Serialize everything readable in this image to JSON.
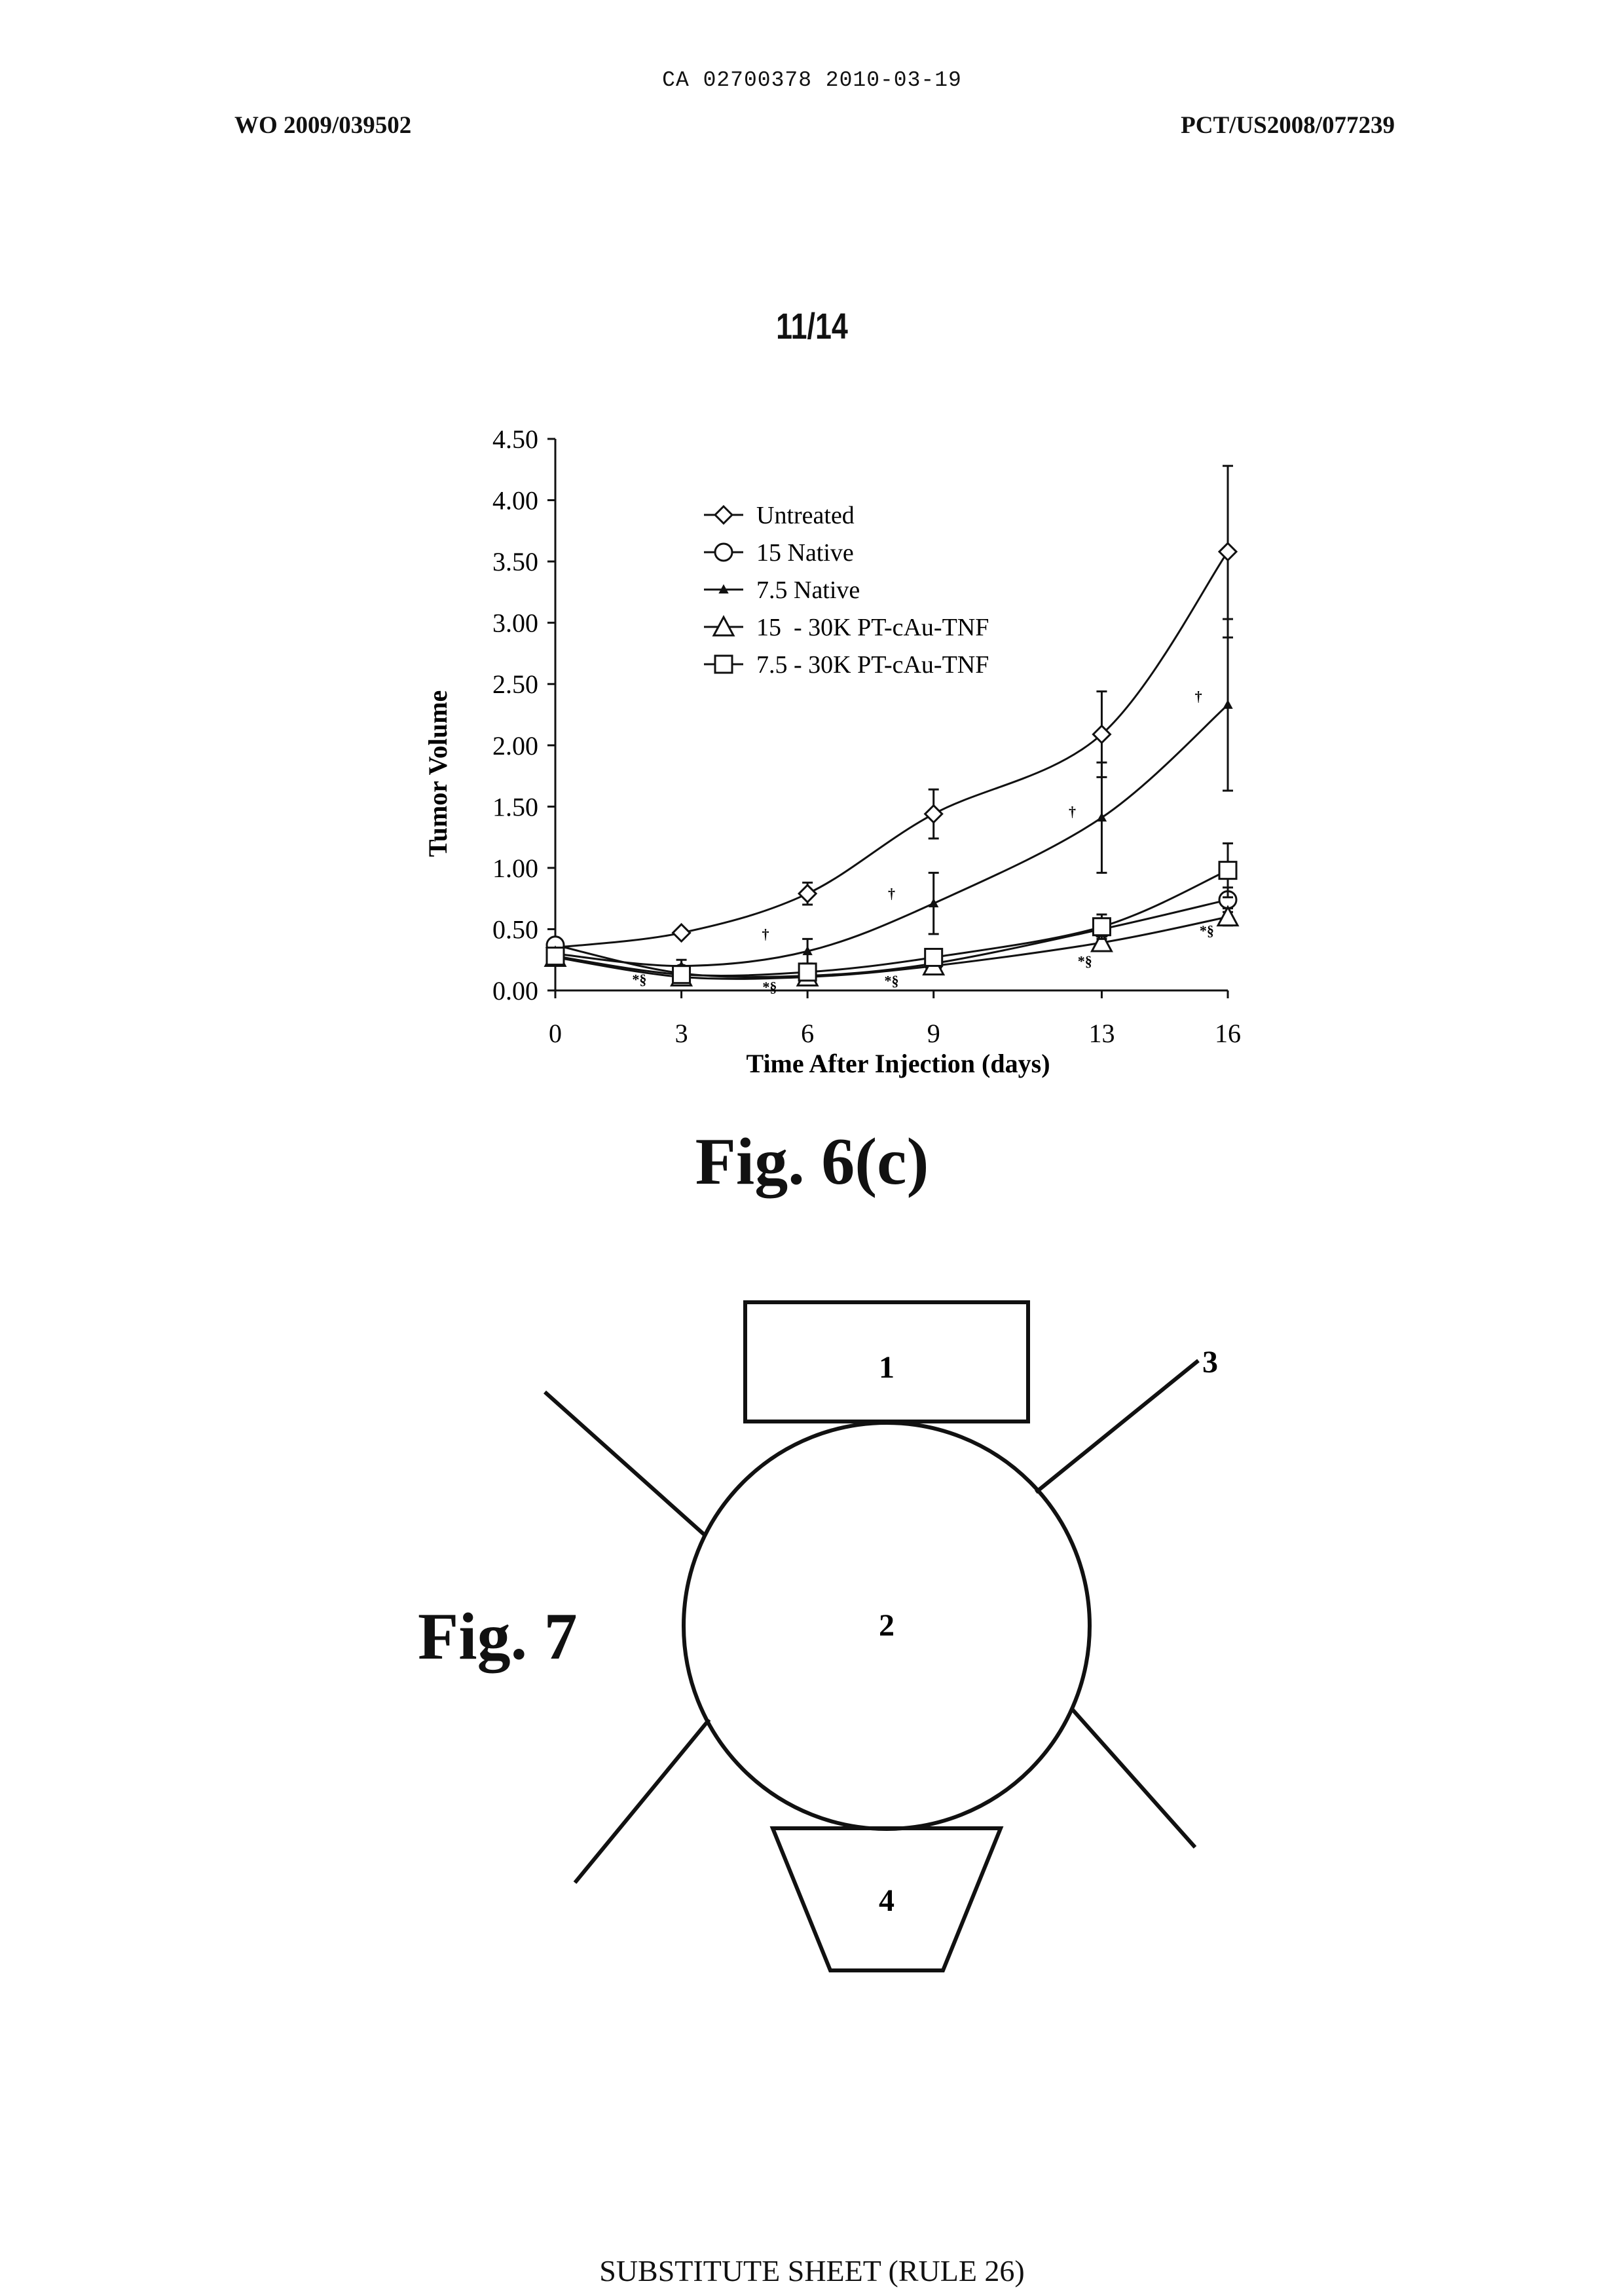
{
  "header": {
    "ca_number": "CA 02700378 2010-03-19",
    "wo_number": "WO 2009/039502",
    "pct_number": "PCT/US2008/077239",
    "sheet": "11/14"
  },
  "figure6c": {
    "caption": "Fig. 6(c)",
    "chart_data": {
      "type": "line",
      "title": "",
      "xlabel": "Time After Injection (days)",
      "ylabel": "Tumor Volume",
      "x": [
        0,
        3,
        6,
        9,
        13,
        16
      ],
      "x_ticks": [
        "0",
        "3",
        "6",
        "9",
        "13",
        "16"
      ],
      "y_ticks": [
        "0.00",
        "0.50",
        "1.00",
        "1.50",
        "2.00",
        "2.50",
        "3.00",
        "3.50",
        "4.00",
        "4.50"
      ],
      "ylim": [
        0,
        4.5
      ],
      "grid": false,
      "legend_position": "top-left inside plot",
      "series": [
        {
          "name": "Untreated",
          "marker": "diamond",
          "values": [
            0.35,
            0.47,
            0.79,
            1.44,
            2.09,
            3.58
          ],
          "errors": [
            0.03,
            0.03,
            0.09,
            0.2,
            0.35,
            0.7
          ]
        },
        {
          "name": "15 Native",
          "marker": "circle",
          "values": [
            0.37,
            0.14,
            0.12,
            0.22,
            0.5,
            0.74
          ],
          "errors": [
            0.03,
            0.03,
            0.03,
            0.04,
            0.06,
            0.1
          ]
        },
        {
          "name": "7.5 Native",
          "marker": "small-triangle",
          "values": [
            0.3,
            0.2,
            0.32,
            0.71,
            1.41,
            2.33
          ],
          "errors": [
            0.03,
            0.05,
            0.1,
            0.25,
            0.45,
            0.7
          ]
        },
        {
          "name": "15  - 30K PT-cAu-TNF",
          "marker": "triangle",
          "values": [
            0.27,
            0.11,
            0.11,
            0.2,
            0.39,
            0.6
          ],
          "errors": [
            0.02,
            0.02,
            0.02,
            0.03,
            0.05,
            0.07
          ]
        },
        {
          "name": "7.5 - 30K PT-cAu-TNF",
          "marker": "square",
          "values": [
            0.28,
            0.13,
            0.15,
            0.27,
            0.52,
            0.98
          ],
          "errors": [
            0.02,
            0.02,
            0.03,
            0.04,
            0.1,
            0.22
          ]
        }
      ],
      "annotations": [
        {
          "text": "†",
          "x": 5,
          "y": 0.42
        },
        {
          "text": "†",
          "x": 8,
          "y": 0.75
        },
        {
          "text": "†",
          "x": 12.3,
          "y": 1.42
        },
        {
          "text": "†",
          "x": 15.3,
          "y": 2.36
        },
        {
          "text": "*§",
          "x": 2,
          "y": 0.05
        },
        {
          "text": "*§",
          "x": 5.1,
          "y": -0.01
        },
        {
          "text": "*§",
          "x": 8,
          "y": 0.04
        },
        {
          "text": "*§",
          "x": 12.6,
          "y": 0.2
        },
        {
          "text": "*§",
          "x": 15.5,
          "y": 0.45
        }
      ]
    }
  },
  "figure7": {
    "caption": "Fig. 7",
    "labels": {
      "box1": "1",
      "circle2": "2",
      "line3": "3",
      "trap4": "4"
    }
  },
  "footer": "SUBSTITUTE SHEET (RULE 26)"
}
